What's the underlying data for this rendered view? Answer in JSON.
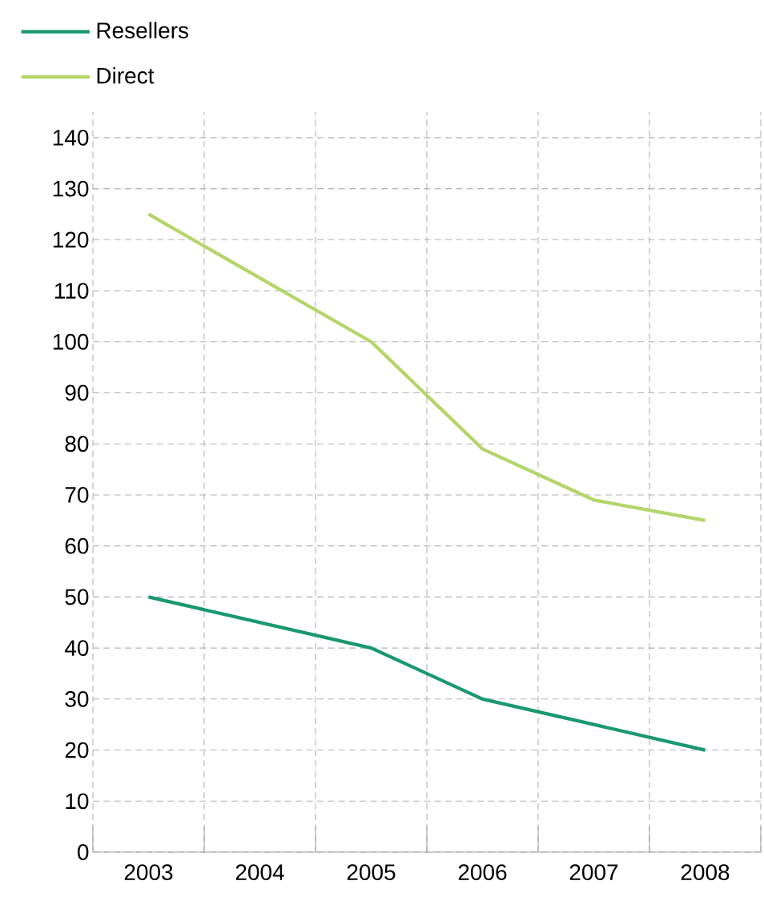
{
  "chart_data": {
    "type": "line",
    "categories": [
      "2003",
      "2004",
      "2005",
      "2006",
      "2007",
      "2008"
    ],
    "series": [
      {
        "name": "Resellers",
        "color": "#1a9870",
        "values": [
          50,
          45,
          40,
          30,
          25,
          20
        ]
      },
      {
        "name": "Direct",
        "color": "#b5d56a",
        "values": [
          125,
          112.5,
          100,
          79,
          69,
          65
        ]
      }
    ],
    "ylim": [
      0,
      145
    ],
    "yticks": [
      0,
      10,
      20,
      30,
      40,
      50,
      60,
      70,
      80,
      90,
      100,
      110,
      120,
      130,
      140
    ],
    "grid": true,
    "legend": "top left",
    "marker": "none",
    "line_style": "solid"
  }
}
